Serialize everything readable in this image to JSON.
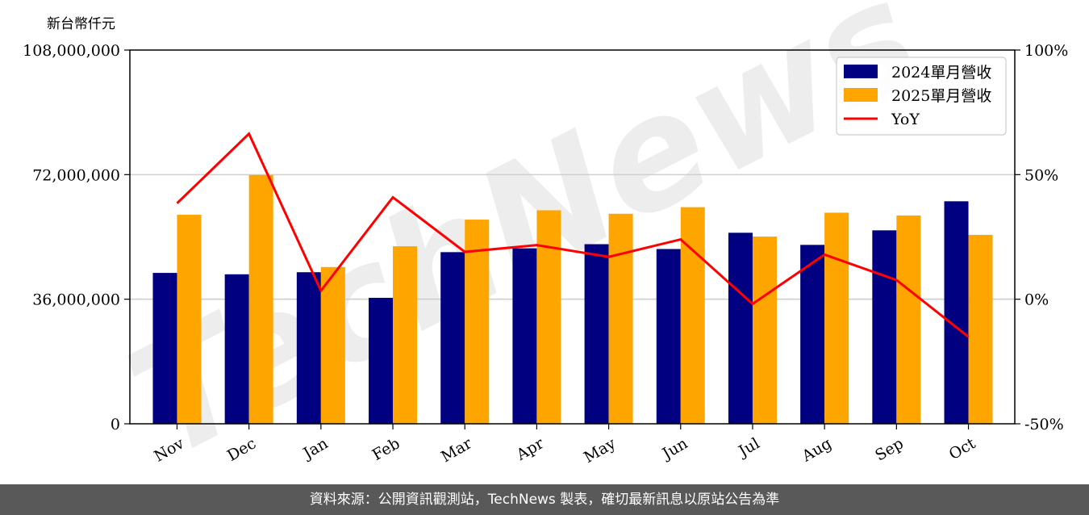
{
  "unit_label": "新台幣仟元",
  "footer": "資料來源：公開資訊觀測站，TechNews 製表，確切最新訊息以原站公告為準",
  "watermark": "TechNews",
  "chart_data": {
    "type": "bar",
    "categories": [
      "Nov",
      "Dec",
      "Jan",
      "Feb",
      "Mar",
      "Apr",
      "May",
      "Jun",
      "Jul",
      "Aug",
      "Sep",
      "Oct"
    ],
    "series": [
      {
        "name": "2024單月營收",
        "color": "#000080",
        "values": [
          43600000,
          43200000,
          43800000,
          36400000,
          49600000,
          50700000,
          51900000,
          50500000,
          55200000,
          51700000,
          55900000,
          64300000
        ]
      },
      {
        "name": "2025單月營收",
        "color": "#FFA500",
        "values": [
          60400000,
          71900000,
          45300000,
          51300000,
          59000000,
          61700000,
          60700000,
          62600000,
          54100000,
          61000000,
          60200000,
          54600000
        ]
      }
    ],
    "line_series": {
      "name": "YoY",
      "color": "#FF0000",
      "axis": "right",
      "values": [
        38.5,
        66.4,
        3.4,
        40.9,
        19.0,
        21.7,
        17.0,
        24.0,
        -1.9,
        17.9,
        7.7,
        -15.1
      ]
    },
    "y_left": {
      "ylim": [
        0,
        108000000
      ],
      "ticks": [
        0,
        36000000,
        72000000,
        108000000
      ],
      "tick_labels": [
        "0",
        "36,000,000",
        "72,000,000",
        "108,000,000"
      ]
    },
    "y_right": {
      "ylim": [
        -50,
        100
      ],
      "ticks": [
        -50,
        0,
        50,
        100
      ],
      "tick_labels": [
        "-50%",
        "0%",
        "50%",
        "100%"
      ]
    },
    "legend": {
      "placement": "top-right",
      "entries": [
        "2024單月營收",
        "2025單月營收",
        "YoY"
      ]
    },
    "grid": "horizontal"
  }
}
